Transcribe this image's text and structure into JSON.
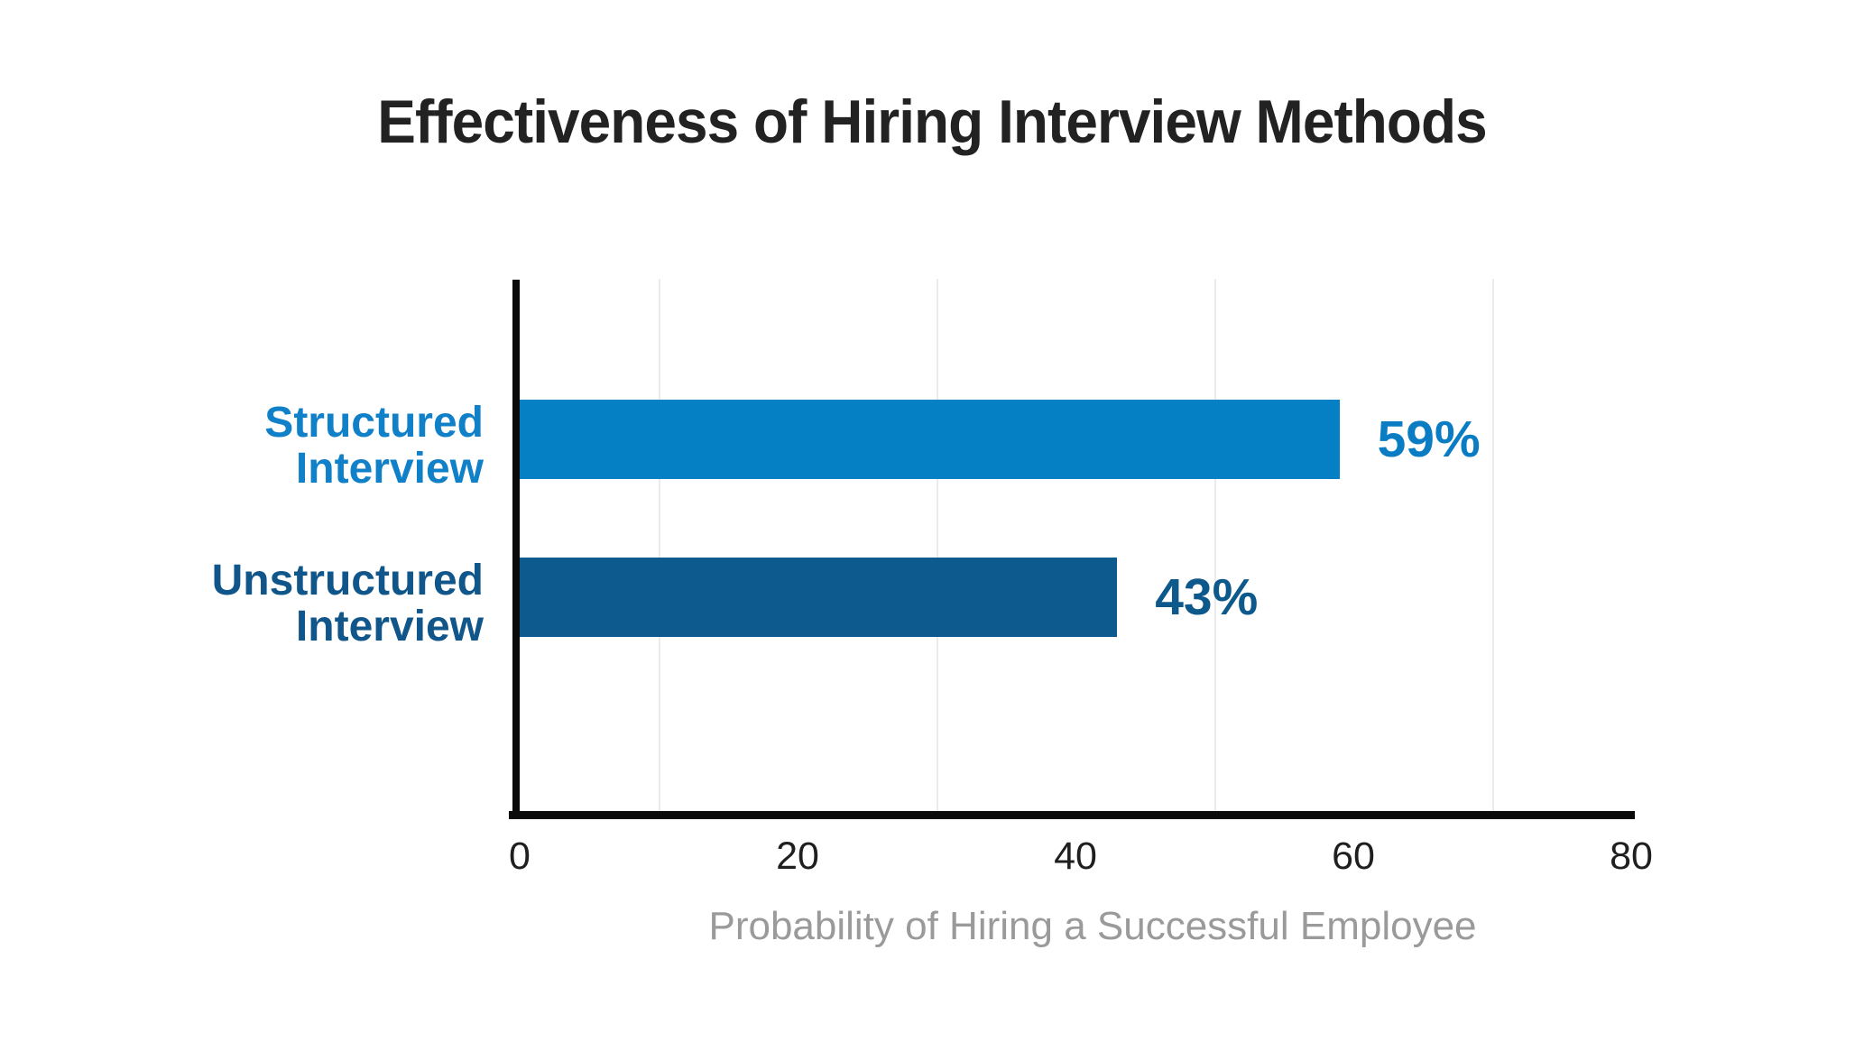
{
  "chart_data": {
    "type": "bar",
    "orientation": "horizontal",
    "title": "Effectiveness of Hiring Interview Methods",
    "xlabel": "Probability of Hiring a Successful Employee",
    "ylabel": "",
    "categories": [
      "Structured Interview",
      "Unstructured Interview"
    ],
    "category_lines": [
      [
        "Structured",
        "Interview"
      ],
      [
        "Unstructured",
        "Interview"
      ]
    ],
    "values": [
      59,
      43
    ],
    "value_labels": [
      "59%",
      "43%"
    ],
    "xlim": [
      0,
      80
    ],
    "xticks": [
      0,
      20,
      40,
      60,
      80
    ],
    "gridlines_x": [
      10,
      30,
      50,
      70
    ],
    "grid": "faint-vertical",
    "legend": "none",
    "bar_colors": [
      "#0680C4",
      "#0C5A8E"
    ],
    "value_label_colors": [
      "#0A7CC4",
      "#0E598C"
    ],
    "category_label_colors": [
      "#1081C8",
      "#11568A"
    ]
  },
  "colors": {
    "background": "#FFFFFF",
    "title_text": "#222222",
    "axis_line": "#0A0A0A",
    "gridline": "#EBEBEB",
    "tick_text": "#1F1F1F",
    "xlabel_text": "#9A9A9A"
  }
}
